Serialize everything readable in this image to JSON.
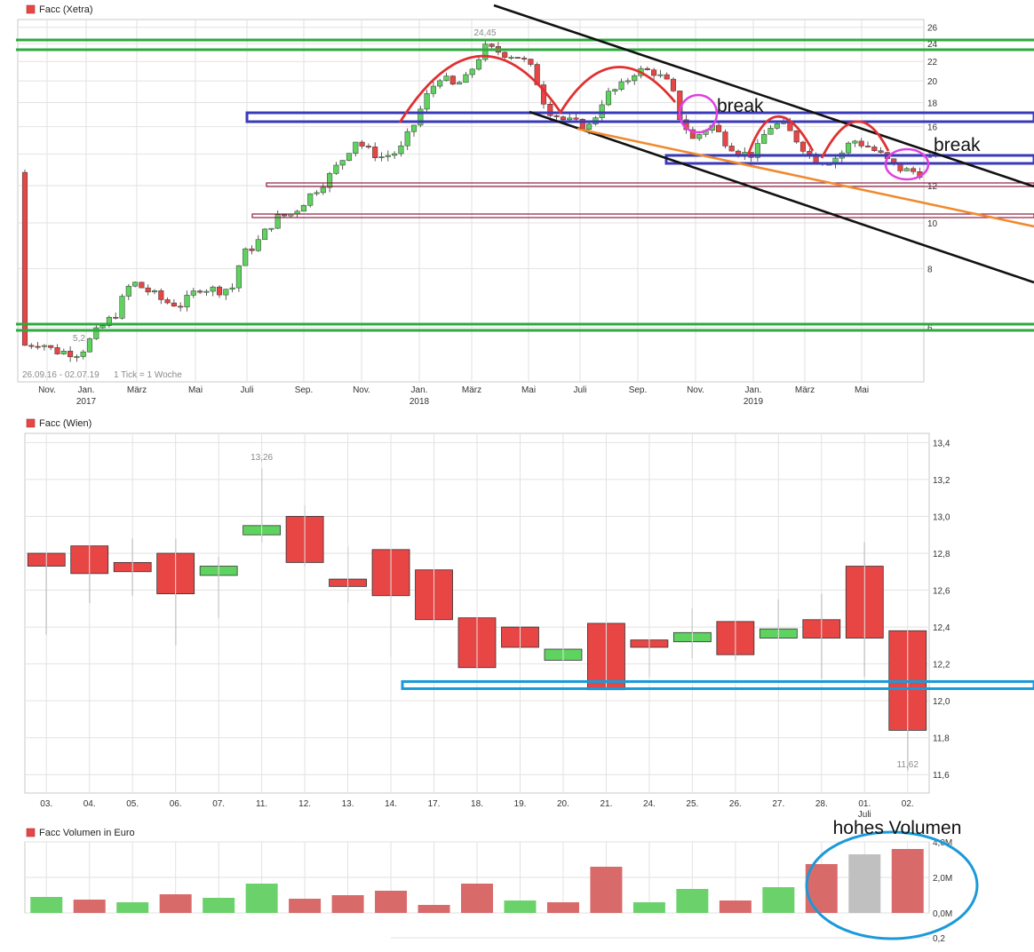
{
  "colors": {
    "up": "#5fd35f",
    "down": "#e84545",
    "neutral": "#c0c0c0",
    "vol_up": "#6bd26b",
    "vol_down": "#d96a6a",
    "grid": "#e2e2e2",
    "red_arc": "#e03030",
    "blue_rect": "#3a3ab8",
    "green_line": "#2eaa3e",
    "orange_line": "#f08a30",
    "magenta": "#e040e0",
    "cyan": "#1a9ad8"
  },
  "chart_data": [
    {
      "type": "candlestick",
      "title": "Facc (Xetra)",
      "period": "26.09.16 - 02.07.19",
      "interval": "1 Tick = 1 Woche",
      "scale": "log",
      "ylim": [
        4.6,
        27
      ],
      "y_ticks": [
        "6",
        "8",
        "10",
        "12",
        "14",
        "16",
        "18",
        "20",
        "22",
        "24",
        "26"
      ],
      "x_ticks": [
        {
          "label": "Nov.",
          "year": ""
        },
        {
          "label": "Jan.",
          "year": "2017"
        },
        {
          "label": "März",
          "year": ""
        },
        {
          "label": "Mai",
          "year": ""
        },
        {
          "label": "Juli",
          "year": ""
        },
        {
          "label": "Sep.",
          "year": ""
        },
        {
          "label": "Nov.",
          "year": ""
        },
        {
          "label": "Jan.",
          "year": "2018"
        },
        {
          "label": "März",
          "year": ""
        },
        {
          "label": "Mai",
          "year": ""
        },
        {
          "label": "Juli",
          "year": ""
        },
        {
          "label": "Sep.",
          "year": ""
        },
        {
          "label": "Nov.",
          "year": ""
        },
        {
          "label": "Jan.",
          "year": "2019"
        },
        {
          "label": "März",
          "year": ""
        },
        {
          "label": "Mai",
          "year": ""
        }
      ],
      "max_label": "24,45",
      "min_label": "5,2",
      "annotations": [
        "break",
        "break"
      ]
    },
    {
      "type": "candlestick",
      "title": "Facc (Wien)",
      "ylim": [
        11.5,
        13.45
      ],
      "y_ticks": [
        "11,6",
        "11,8",
        "12,0",
        "12,2",
        "12,4",
        "12,6",
        "12,8",
        "13,0",
        "13,2",
        "13,4"
      ],
      "categories": [
        "03.",
        "04.",
        "05.",
        "06.",
        "07.",
        "11.",
        "12.",
        "13.",
        "14.",
        "17.",
        "18.",
        "19.",
        "20.",
        "21.",
        "24.",
        "25.",
        "26.",
        "27.",
        "28.",
        "01.",
        "02."
      ],
      "month_label": "Juli",
      "ohlc": [
        [
          12.8,
          12.8,
          12.36,
          12.73
        ],
        [
          12.84,
          12.84,
          12.53,
          12.69
        ],
        [
          12.75,
          12.88,
          12.57,
          12.7
        ],
        [
          12.8,
          12.88,
          12.3,
          12.58
        ],
        [
          12.68,
          12.78,
          12.45,
          12.73
        ],
        [
          12.9,
          13.26,
          12.86,
          12.95
        ],
        [
          13.0,
          13.06,
          12.73,
          12.75
        ],
        [
          12.66,
          12.84,
          12.53,
          12.62
        ],
        [
          12.82,
          12.82,
          12.24,
          12.57
        ],
        [
          12.71,
          12.71,
          12.37,
          12.44
        ],
        [
          12.45,
          12.45,
          12.05,
          12.18
        ],
        [
          12.4,
          12.4,
          12.18,
          12.29
        ],
        [
          12.22,
          12.4,
          12.22,
          12.28
        ],
        [
          12.42,
          12.42,
          12.06,
          12.06
        ],
        [
          12.33,
          12.33,
          12.13,
          12.29
        ],
        [
          12.32,
          12.5,
          12.23,
          12.37
        ],
        [
          12.43,
          12.43,
          12.22,
          12.25
        ],
        [
          12.34,
          12.55,
          12.34,
          12.39
        ],
        [
          12.44,
          12.58,
          12.12,
          12.34
        ],
        [
          12.73,
          12.86,
          12.13,
          12.34
        ],
        [
          12.38,
          12.38,
          11.62,
          11.84
        ]
      ],
      "max_label": "13,26",
      "min_label": "11,62"
    },
    {
      "type": "bar",
      "title": "Facc Volumen in Euro",
      "ylim": [
        0,
        4.0
      ],
      "y_ticks": [
        "0,0M",
        "2,0M",
        "4,0M"
      ],
      "values": [
        0.9,
        0.75,
        0.6,
        1.05,
        0.85,
        1.65,
        0.8,
        1.0,
        1.25,
        0.45,
        1.65,
        0.7,
        0.6,
        2.6,
        0.6,
        1.35,
        0.7,
        1.45,
        2.75,
        3.3,
        3.6
      ],
      "direction": [
        "up",
        "down",
        "up",
        "down",
        "up",
        "up",
        "down",
        "down",
        "down",
        "down",
        "down",
        "up",
        "down",
        "down",
        "up",
        "up",
        "down",
        "up",
        "down",
        "neutral",
        "down"
      ],
      "extra_tick": "0,2",
      "annotation": "hohes Volumen"
    }
  ]
}
